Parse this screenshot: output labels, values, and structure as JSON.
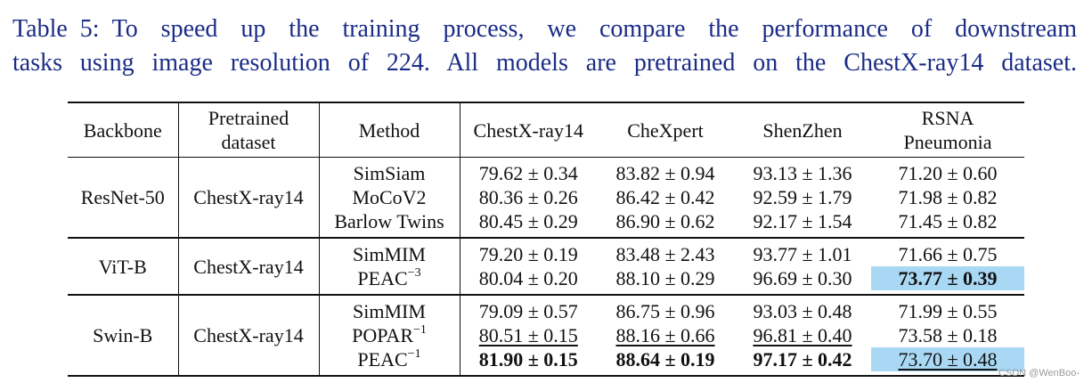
{
  "caption": {
    "label": "Table",
    "number": "5:",
    "line1": "To speed up the training process, we compare the performance of downstream",
    "line2": "tasks using image resolution of 224. All models are pretrained on the ChestX-ray14 dataset."
  },
  "table": {
    "headers": {
      "backbone": "Backbone",
      "pretrained_1": "Pretrained",
      "pretrained_2": "dataset",
      "method": "Method",
      "chestx": "ChestX-ray14",
      "chexpert": "CheXpert",
      "shenzhen": "ShenZhen",
      "rsna_1": "RSNA",
      "rsna_2": "Pneumonia"
    },
    "groups": [
      {
        "backbone": "ResNet-50",
        "dataset": "ChestX-ray14",
        "methods": [
          {
            "name": "SimSiam",
            "sup": "",
            "chestx": "79.62 ± 0.34",
            "chexpert": "83.82 ± 0.94",
            "shenzhen": "93.13 ± 1.36",
            "rsna": "71.20 ± 0.60"
          },
          {
            "name": "MoCoV2",
            "sup": "",
            "chestx": "80.36 ± 0.26",
            "chexpert": "86.42 ± 0.42",
            "shenzhen": "92.59 ± 1.79",
            "rsna": "71.98 ± 0.82"
          },
          {
            "name": "Barlow Twins",
            "sup": "",
            "chestx": "80.45 ± 0.29",
            "chexpert": "86.90 ± 0.62",
            "shenzhen": "92.17 ± 1.54",
            "rsna": "71.45 ± 0.82"
          }
        ]
      },
      {
        "backbone": "ViT-B",
        "dataset": "ChestX-ray14",
        "methods": [
          {
            "name": "SimMIM",
            "sup": "",
            "chestx": "79.20 ± 0.19",
            "chexpert": "83.48 ± 2.43",
            "shenzhen": "93.77 ± 1.01",
            "rsna": "71.66 ± 0.75"
          },
          {
            "name": "PEAC",
            "sup": "−3",
            "chestx": "80.04 ± 0.20",
            "chexpert": "88.10 ± 0.29",
            "shenzhen": "96.69 ± 0.30",
            "rsna": "73.77 ± 0.39"
          }
        ]
      },
      {
        "backbone": "Swin-B",
        "dataset": "ChestX-ray14",
        "methods": [
          {
            "name": "SimMIM",
            "sup": "",
            "chestx": "79.09 ± 0.57",
            "chexpert": "86.75 ± 0.96",
            "shenzhen": "93.03 ± 0.48",
            "rsna": "71.99 ± 0.55"
          },
          {
            "name": "POPAR",
            "sup": "−1",
            "chestx": "80.51 ± 0.15",
            "chexpert": "88.16 ± 0.66",
            "shenzhen": "96.81 ± 0.40",
            "rsna": "73.58 ± 0.18"
          },
          {
            "name": "PEAC",
            "sup": "−1",
            "chestx": "81.90 ± 0.15",
            "chexpert": "88.64 ± 0.19",
            "shenzhen": "97.17 ± 0.42",
            "rsna": "73.70 ± 0.48"
          }
        ]
      }
    ],
    "highlight_color": "#a9d8f5"
  },
  "watermark": "CSDN @WenBoo-"
}
